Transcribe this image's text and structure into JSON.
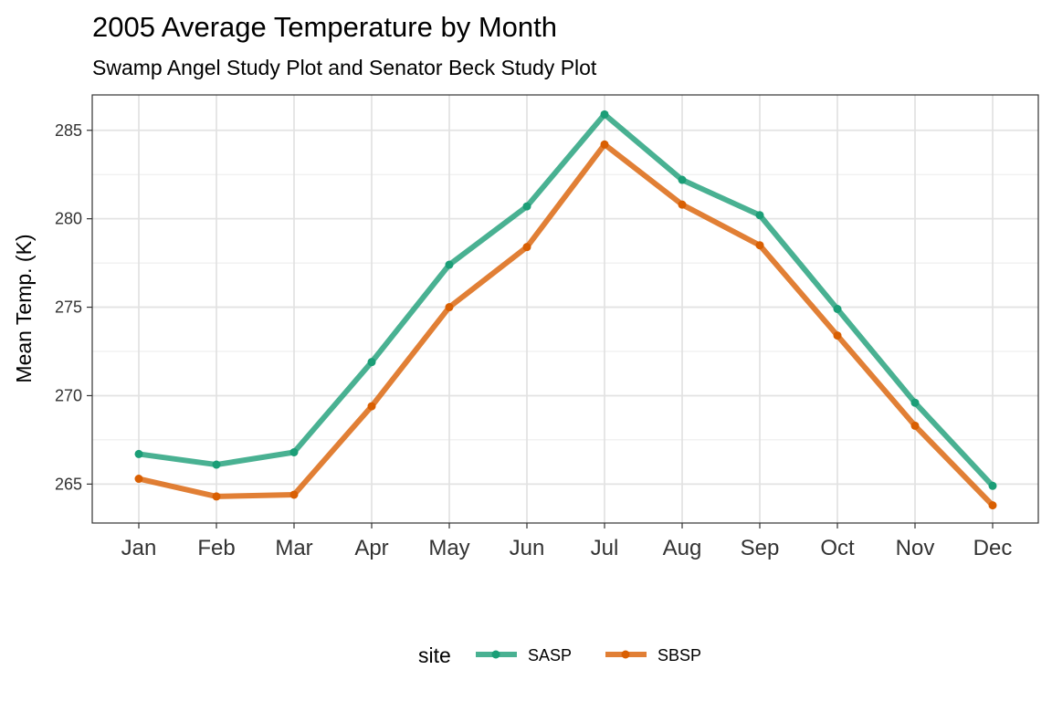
{
  "chart_data": {
    "type": "line",
    "title": "2005 Average Temperature by Month",
    "subtitle": "Swamp Angel Study Plot and Senator Beck Study Plot",
    "xlabel": "",
    "ylabel": "Mean Temp. (K)",
    "categories": [
      "Jan",
      "Feb",
      "Mar",
      "Apr",
      "May",
      "Jun",
      "Jul",
      "Aug",
      "Sep",
      "Oct",
      "Nov",
      "Dec"
    ],
    "y_ticks": [
      265,
      270,
      275,
      280,
      285
    ],
    "ylim": [
      262.8,
      287.0
    ],
    "grid": true,
    "legend": {
      "title": "site",
      "position": "bottom"
    },
    "series": [
      {
        "name": "SASP",
        "color": "#1b9e77",
        "values": [
          266.7,
          266.1,
          266.8,
          271.9,
          277.4,
          280.7,
          285.9,
          282.2,
          280.2,
          274.9,
          269.6,
          264.9
        ]
      },
      {
        "name": "SBSP",
        "color": "#d95f02",
        "values": [
          265.3,
          264.3,
          264.4,
          269.4,
          275.0,
          278.4,
          284.2,
          280.8,
          278.5,
          273.4,
          268.3,
          263.8
        ]
      }
    ]
  }
}
